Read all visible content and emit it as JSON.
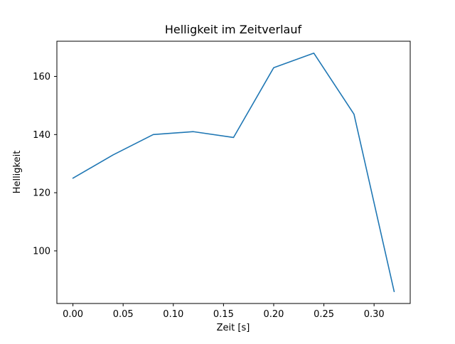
{
  "chart_data": {
    "type": "line",
    "title": "Helligkeit im Zeitverlauf",
    "xlabel": "Zeit [s]",
    "ylabel": "Helligkeit",
    "x": [
      0.0,
      0.04,
      0.08,
      0.12,
      0.16,
      0.2,
      0.24,
      0.28,
      0.32
    ],
    "y": [
      125,
      133,
      140,
      141,
      139,
      163,
      168,
      147,
      86
    ],
    "xlim": [
      -0.016,
      0.336
    ],
    "ylim": [
      81.9,
      172.1
    ],
    "xticks": [
      0.0,
      0.05,
      0.1,
      0.15,
      0.2,
      0.25,
      0.3
    ],
    "xtick_labels": [
      "0.00",
      "0.05",
      "0.10",
      "0.15",
      "0.20",
      "0.25",
      "0.30"
    ],
    "yticks": [
      100,
      120,
      140,
      160
    ],
    "ytick_labels": [
      "100",
      "120",
      "140",
      "160"
    ],
    "line_color": "#1f77b4",
    "frame_color": "#000000",
    "background_color": "#ffffff",
    "grid": false,
    "legend": null
  }
}
